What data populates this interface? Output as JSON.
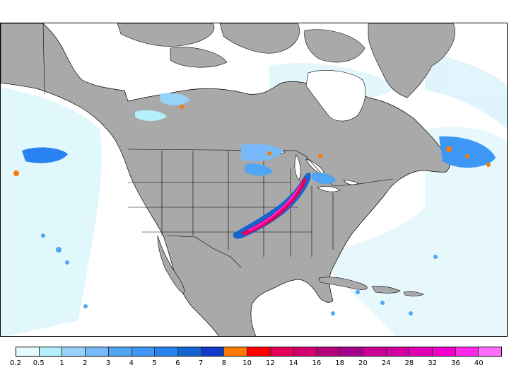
{
  "map": {
    "colors": {
      "ocean": "#ffffff",
      "land": "#a9a9a9",
      "border": "#000000"
    }
  },
  "legend": {
    "labels": [
      "0.2",
      "0.5",
      "1",
      "2",
      "3",
      "4",
      "5",
      "6",
      "7",
      "8",
      "10",
      "12",
      "14",
      "16",
      "18",
      "20",
      "24",
      "28",
      "32",
      "36",
      "40"
    ],
    "colors": [
      "#e6fbff",
      "#b4f0fa",
      "#96d2fa",
      "#78b9fa",
      "#50a5f5",
      "#3c97f5",
      "#2883f0",
      "#1464d2",
      "#103cc8",
      "#ff7800",
      "#ff0000",
      "#e6005a",
      "#d2006e",
      "#b4007d",
      "#a5008c",
      "#c80096",
      "#d200a0",
      "#e100b4",
      "#f000c8",
      "#ff28e6",
      "#ff6eff"
    ]
  }
}
